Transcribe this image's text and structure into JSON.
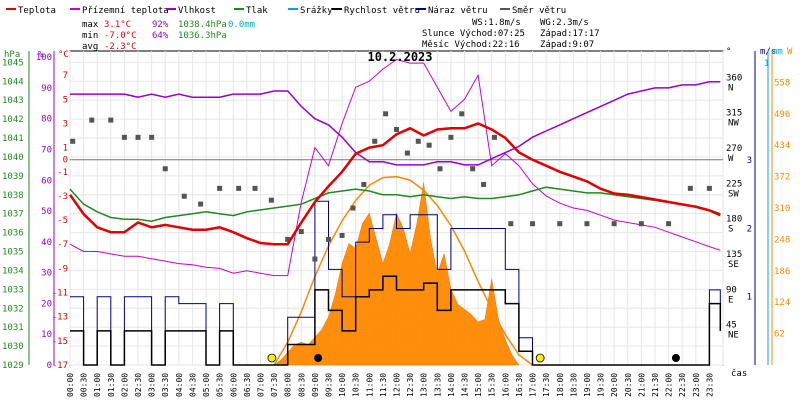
{
  "chart_data": {
    "type": "line",
    "title": "10.2.2023",
    "legend": [
      {
        "name": "Teplota",
        "color": "#e00000"
      },
      {
        "name": "Přízemní teplota",
        "color": "#cc00cc"
      },
      {
        "name": "Vlhkost",
        "color": "#9900cc"
      },
      {
        "name": "Tlak",
        "color": "#228822"
      },
      {
        "name": "Srážky",
        "color": "#00aacc"
      },
      {
        "name": "Rychlost větru",
        "color": "#000000"
      },
      {
        "name": "Náraz větru",
        "color": "#000088"
      },
      {
        "name": "Směr větru",
        "color": "#555555"
      }
    ],
    "stats": {
      "max_label": "max",
      "max_temp": "3.1°C",
      "max_hum": "92%",
      "max_press": "1038.4hPa",
      "max_rain": "0.0mm",
      "min_label": "min",
      "min_temp": "-7.0°C",
      "min_hum": "64%",
      "min_press": "1036.3hPa",
      "avg_label": "avg",
      "avg_temp": "-2.3°C"
    },
    "wind_info": {
      "ws": "WS:1.8m/s",
      "wg": "WG:2.3m/s"
    },
    "sun_info": {
      "rise": "Slunce Východ:07:25",
      "set": "Západ:17:17"
    },
    "moon_info": {
      "rise": "Měsíc  Východ:22:16",
      "set": "Západ:9:07"
    },
    "x_label": "čas",
    "x_ticks": [
      "00:00",
      "00:30",
      "01:00",
      "01:30",
      "02:00",
      "02:30",
      "03:00",
      "03:30",
      "04:00",
      "04:30",
      "05:00",
      "05:30",
      "06:00",
      "06:30",
      "07:00",
      "07:30",
      "08:00",
      "08:30",
      "09:00",
      "09:30",
      "10:00",
      "10:30",
      "11:00",
      "11:30",
      "12:00",
      "12:30",
      "13:00",
      "13:30",
      "14:00",
      "14:30",
      "15:00",
      "15:30",
      "16:00",
      "16:30",
      "17:00",
      "17:30",
      "18:00",
      "18:30",
      "19:00",
      "19:30",
      "20:00",
      "20:30",
      "21:00",
      "21:30",
      "22:00",
      "22:30",
      "23:00",
      "23:30"
    ],
    "axes": {
      "hpa": {
        "label": "hPa",
        "color": "#228822",
        "ticks": [
          "1045",
          "1044",
          "1043",
          "1042",
          "1041",
          "1040",
          "1039",
          "1038",
          "1037",
          "1036",
          "1035",
          "1034",
          "1033",
          "1032",
          "1031",
          "1030",
          "1029"
        ]
      },
      "pct": {
        "label": "%",
        "color": "#9900cc",
        "ticks": [
          "100",
          "90",
          "80",
          "70",
          "60",
          "50",
          "40",
          "30",
          "20",
          "10",
          "0"
        ]
      },
      "temp": {
        "label": "°C",
        "color": "#e00000",
        "ticks": [
          "7",
          "5",
          "3",
          "1",
          "0",
          "-1",
          "-3",
          "-5",
          "-7",
          "-9",
          "-11",
          "-13",
          "-15",
          "-17"
        ]
      },
      "dir_deg": {
        "label": "°",
        "ticks": [
          "360",
          "315",
          "270",
          "225",
          "180",
          "135",
          "90",
          "45"
        ]
      },
      "dir_name": {
        "ticks": [
          "N",
          "NW",
          "W",
          "SW",
          "S",
          "SE",
          "E",
          "NE"
        ]
      },
      "ms": {
        "label": "m/s",
        "color": "#000088",
        "ticks": [
          "3",
          "2",
          "1"
        ]
      },
      "mm": {
        "label": "mm",
        "color": "#00aacc",
        "ticks": [
          "1"
        ]
      },
      "wm2": {
        "label": "W",
        "color": "#ff8800",
        "ticks": [
          "558",
          "496",
          "434",
          "372",
          "310",
          "248",
          "186",
          "124",
          "62"
        ]
      }
    },
    "ylim_temp": [
      -17,
      9
    ],
    "ylim_hum": [
      0,
      102
    ],
    "ylim_press": [
      1029,
      1045.6
    ],
    "ylim_wind": [
      0,
      4.6
    ],
    "ylim_rad": [
      0,
      620
    ],
    "series": [
      {
        "name": "Teplota",
        "color": "#e00000",
        "axis": "temp",
        "x": [
          0,
          0.5,
          1,
          1.5,
          2,
          2.5,
          3,
          3.5,
          4,
          4.5,
          5,
          5.5,
          6,
          6.5,
          7,
          7.5,
          8,
          8.5,
          9,
          9.5,
          10,
          10.5,
          11,
          11.5,
          12,
          12.5,
          13,
          13.5,
          14,
          14.5,
          15,
          15.5,
          16,
          16.5,
          17,
          17.5,
          18,
          18.5,
          19,
          19.5,
          20,
          20.5,
          21,
          21.5,
          22,
          22.5,
          23,
          23.5,
          23.9
        ],
        "y": [
          -2.9,
          -4.5,
          -5.6,
          -6.0,
          -6.0,
          -5.2,
          -5.6,
          -5.4,
          -5.6,
          -5.8,
          -5.8,
          -5.6,
          -6.0,
          -6.5,
          -6.9,
          -7.0,
          -7.0,
          -5.2,
          -3.5,
          -2.2,
          -1.0,
          0.5,
          1.0,
          1.2,
          2.1,
          2.6,
          2.0,
          2.5,
          2.6,
          2.6,
          3.0,
          2.5,
          1.8,
          0.6,
          0.0,
          -0.5,
          -1.0,
          -1.4,
          -1.8,
          -2.4,
          -2.8,
          -2.9,
          -3.1,
          -3.3,
          -3.5,
          -3.7,
          -3.9,
          -4.2,
          -4.6
        ]
      },
      {
        "name": "Přízemní teplota",
        "color": "#cc00cc",
        "axis": "temp",
        "x": [
          0,
          0.5,
          1,
          1.5,
          2,
          2.5,
          3,
          3.5,
          4,
          4.5,
          5,
          5.5,
          6,
          6.5,
          7,
          7.5,
          8,
          8.5,
          9,
          9.5,
          10,
          10.5,
          11,
          11.5,
          12,
          12.5,
          13,
          13.5,
          14,
          14.5,
          15,
          15.5,
          16,
          16.5,
          17,
          17.5,
          18,
          18.5,
          19,
          19.5,
          20,
          20.5,
          21,
          21.5,
          22,
          22.5,
          23,
          23.5,
          23.9
        ],
        "y": [
          -7.0,
          -7.6,
          -7.6,
          -7.8,
          -8.0,
          -8.0,
          -8.2,
          -8.4,
          -8.6,
          -8.7,
          -8.9,
          -9.0,
          -9.4,
          -9.2,
          -9.4,
          -9.6,
          -9.6,
          -3.5,
          1.0,
          -0.5,
          3.0,
          6.0,
          6.5,
          7.5,
          8.3,
          8.0,
          8.0,
          6.0,
          4.0,
          5.0,
          7.0,
          -0.5,
          0.5,
          -0.5,
          -2.0,
          -3.0,
          -3.6,
          -4.0,
          -4.2,
          -4.6,
          -5.0,
          -5.2,
          -5.4,
          -5.6,
          -6.0,
          -6.4,
          -6.8,
          -7.2,
          -7.5
        ]
      },
      {
        "name": "Vlhkost",
        "color": "#9900cc",
        "axis": "pct",
        "x": [
          0,
          0.5,
          1,
          1.5,
          2,
          2.5,
          3,
          3.5,
          4,
          4.5,
          5,
          5.5,
          6,
          6.5,
          7,
          7.5,
          8,
          8.5,
          9,
          9.5,
          10,
          10.5,
          11,
          11.5,
          12,
          12.5,
          13,
          13.5,
          14,
          14.5,
          15,
          15.5,
          16,
          16.5,
          17,
          17.5,
          18,
          18.5,
          19,
          19.5,
          20,
          20.5,
          21,
          21.5,
          22,
          22.5,
          23,
          23.5,
          23.9
        ],
        "y": [
          88,
          88,
          88,
          88,
          88,
          87,
          88,
          87,
          88,
          87,
          87,
          87,
          88,
          88,
          88,
          89,
          89,
          84,
          80,
          78,
          74,
          69,
          66,
          66,
          65,
          65,
          65,
          66,
          66,
          65,
          65,
          67,
          69,
          71,
          74,
          76,
          78,
          80,
          82,
          84,
          86,
          88,
          89,
          90,
          90,
          91,
          91,
          92,
          92
        ]
      },
      {
        "name": "Tlak",
        "color": "#228822",
        "axis": "press",
        "x": [
          0,
          0.5,
          1,
          1.5,
          2,
          2.5,
          3,
          3.5,
          4,
          4.5,
          5,
          5.5,
          6,
          6.5,
          7,
          7.5,
          8,
          8.5,
          9,
          9.5,
          10,
          10.5,
          11,
          11.5,
          12,
          12.5,
          13,
          13.5,
          14,
          14.5,
          15,
          15.5,
          16,
          16.5,
          17,
          17.5,
          18,
          18.5,
          19,
          19.5,
          20,
          20.5,
          21,
          21.5,
          22,
          22.5,
          23,
          23.5,
          23.9
        ],
        "y": [
          1038.3,
          1037.5,
          1037.1,
          1036.8,
          1036.7,
          1036.7,
          1036.6,
          1036.8,
          1036.9,
          1037.0,
          1037.1,
          1037.0,
          1036.9,
          1037.1,
          1037.2,
          1037.3,
          1037.4,
          1037.5,
          1037.8,
          1038.1,
          1038.2,
          1038.3,
          1038.2,
          1038.0,
          1038.0,
          1037.9,
          1038.0,
          1037.9,
          1037.8,
          1037.9,
          1037.8,
          1037.8,
          1037.9,
          1038.0,
          1038.2,
          1038.4,
          1038.3,
          1038.2,
          1038.1,
          1038.1,
          1038.0,
          1037.9,
          1037.8,
          1037.7,
          1037.6,
          1037.5,
          1037.4,
          1037.2,
          1037.0
        ]
      },
      {
        "name": "Rychlost větru",
        "color": "#000000",
        "axis": "wind",
        "x": [
          0,
          0.5,
          1,
          1.5,
          2,
          2.5,
          3,
          3.5,
          4,
          4.5,
          5,
          5.5,
          6,
          6.5,
          7,
          7.5,
          8,
          8.5,
          9,
          9.5,
          10,
          10.5,
          11,
          11.5,
          12,
          12.5,
          13,
          13.5,
          14,
          14.5,
          15,
          15.5,
          16,
          16.5,
          17,
          17.5,
          18,
          18.5,
          19,
          19.5,
          20,
          20.5,
          21,
          21.5,
          22,
          22.5,
          23,
          23.5,
          23.9
        ],
        "y": [
          0.5,
          0.0,
          0.5,
          0.0,
          0.5,
          0.5,
          0.0,
          0.5,
          0.5,
          0.5,
          0.0,
          0.5,
          0.0,
          0.0,
          0.0,
          0.0,
          0.3,
          0.3,
          1.1,
          0.8,
          0.5,
          1.0,
          1.1,
          1.3,
          1.1,
          1.1,
          1.2,
          0.8,
          1.1,
          1.1,
          1.1,
          1.1,
          0.9,
          0.2,
          0.0,
          0.0,
          0.0,
          0.0,
          0.0,
          0.0,
          0.0,
          0.0,
          0.0,
          0.0,
          0.0,
          0.0,
          0.0,
          0.9,
          0.5
        ]
      },
      {
        "name": "Náraz větru",
        "color": "#000088",
        "axis": "wind",
        "x": [
          0,
          0.5,
          1,
          1.5,
          2,
          2.5,
          3,
          3.5,
          4,
          4.5,
          5,
          5.5,
          6,
          6.5,
          7,
          7.5,
          8,
          8.5,
          9,
          9.5,
          10,
          10.5,
          11,
          11.5,
          12,
          12.5,
          13,
          13.5,
          14,
          14.5,
          15,
          15.5,
          16,
          16.5,
          17,
          17.5,
          18,
          18.5,
          19,
          19.5,
          20,
          20.5,
          21,
          21.5,
          22,
          22.5,
          23,
          23.5,
          23.9
        ],
        "y": [
          1.0,
          0.0,
          1.0,
          0.0,
          1.0,
          1.0,
          0.0,
          1.0,
          0.9,
          0.9,
          0.0,
          0.9,
          0.0,
          0.0,
          0.0,
          0.0,
          0.7,
          0.7,
          2.4,
          1.4,
          1.0,
          1.8,
          2.0,
          2.2,
          2.0,
          2.2,
          2.2,
          1.4,
          2.0,
          2.0,
          2.0,
          2.0,
          1.4,
          0.4,
          0.0,
          0.0,
          0.0,
          0.0,
          0.0,
          0.0,
          0.0,
          0.0,
          0.0,
          0.0,
          0.0,
          0.0,
          0.0,
          1.1,
          0.9
        ]
      },
      {
        "name": "Směr větru",
        "color": "#555555",
        "axis": "dir",
        "style": "points",
        "x": [
          0.1,
          0.8,
          1.5,
          2.0,
          2.5,
          3.0,
          3.5,
          4.2,
          4.8,
          5.5,
          6.2,
          6.8,
          7.4,
          8.0,
          8.5,
          9.0,
          9.5,
          10.0,
          10.4,
          10.8,
          11.2,
          11.6,
          12.0,
          12.4,
          12.8,
          13.2,
          13.6,
          14.0,
          14.4,
          14.8,
          15.2,
          15.6,
          16.2,
          17.0,
          18.0,
          19.0,
          20.0,
          21.0,
          22.0,
          22.8,
          23.5
        ],
        "y": [
          285,
          312,
          312,
          290,
          290,
          290,
          250,
          215,
          205,
          225,
          225,
          225,
          210,
          160,
          170,
          135,
          160,
          165,
          200,
          230,
          285,
          320,
          300,
          270,
          285,
          280,
          250,
          290,
          320,
          250,
          230,
          290,
          180,
          180,
          180,
          180,
          180,
          180,
          180,
          225,
          225
        ]
      }
    ],
    "radiation": {
      "name": "Sluneční záření",
      "color": "#ff8800",
      "axis": "wm2",
      "x": [
        7.5,
        7.75,
        8.0,
        8.25,
        8.5,
        8.75,
        9.0,
        9.25,
        9.5,
        9.75,
        10.0,
        10.25,
        10.5,
        10.75,
        11.0,
        11.25,
        11.5,
        11.75,
        12.0,
        12.25,
        12.5,
        12.75,
        13.0,
        13.25,
        13.5,
        13.75,
        14.0,
        14.25,
        14.5,
        14.75,
        15.0,
        15.25,
        15.5,
        15.75,
        16.0,
        16.25,
        16.5
      ],
      "y": [
        0,
        10,
        25,
        40,
        45,
        40,
        55,
        70,
        95,
        140,
        200,
        240,
        230,
        280,
        300,
        250,
        200,
        240,
        300,
        270,
        220,
        280,
        360,
        250,
        180,
        220,
        150,
        120,
        110,
        100,
        85,
        90,
        170,
        90,
        50,
        20,
        0
      ]
    },
    "radiation_theoretical": {
      "x": [
        7.5,
        8.0,
        8.5,
        9.0,
        9.5,
        10.0,
        10.5,
        11.0,
        11.5,
        12.0,
        12.5,
        13.0,
        13.5,
        14.0,
        14.5,
        15.0,
        15.5,
        16.0,
        16.5,
        17.0
      ],
      "y": [
        0,
        45,
        105,
        175,
        235,
        285,
        325,
        355,
        370,
        372,
        365,
        345,
        315,
        275,
        225,
        165,
        110,
        60,
        20,
        0
      ]
    },
    "markers": {
      "sun": [
        {
          "x": 7.42,
          "color": "#ffee00"
        },
        {
          "x": 17.28,
          "color": "#ffee00"
        }
      ],
      "moon": [
        {
          "x": 9.12,
          "color": "#000000"
        },
        {
          "x": 22.27,
          "color": "#000000"
        }
      ]
    }
  }
}
